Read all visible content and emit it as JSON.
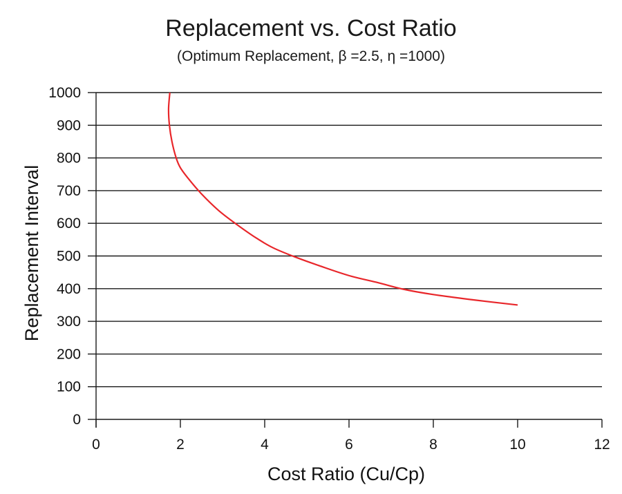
{
  "chart_data": {
    "type": "line",
    "title": "Replacement vs. Cost Ratio",
    "subtitle": "(Optimum Replacement, β =2.5, η =1000)",
    "xlabel": "Cost Ratio (Cu/Cp)",
    "ylabel": "Replacement Interval",
    "xlim": [
      0,
      12
    ],
    "ylim": [
      0,
      1000
    ],
    "xticks": [
      "0",
      "2",
      "4",
      "6",
      "8",
      "10",
      "12"
    ],
    "yticks": [
      "0",
      "100",
      "200",
      "300",
      "400",
      "500",
      "600",
      "700",
      "800",
      "900",
      "1000"
    ],
    "grid": "horizontal",
    "series": [
      {
        "color": "#e8262a",
        "x": [
          1.75,
          1.72,
          1.74,
          1.8,
          1.9,
          2.0,
          2.2,
          2.5,
          2.9,
          3.3,
          3.8,
          4.2,
          4.7,
          5.3,
          6.0,
          6.7,
          7.3,
          8.0,
          9.0,
          10.0
        ],
        "y": [
          1000,
          950,
          900,
          850,
          800,
          770,
          735,
          690,
          640,
          600,
          555,
          525,
          498,
          470,
          440,
          418,
          398,
          382,
          365,
          350
        ]
      }
    ]
  }
}
